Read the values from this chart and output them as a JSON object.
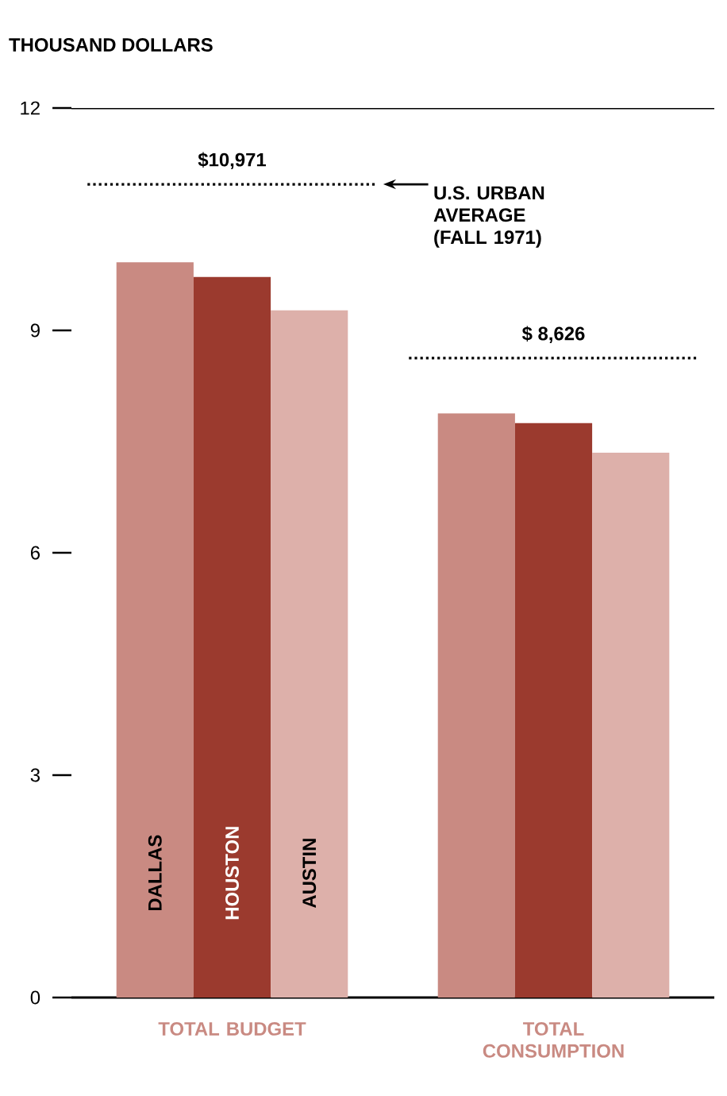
{
  "chart_data": {
    "type": "bar",
    "ylabel": "THOUSAND DOLLARS",
    "categories": [
      "TOTAL BUDGET",
      "TOTAL CONSUMPTION"
    ],
    "series": [
      {
        "name": "DALLAS",
        "color": "#c98a82",
        "values": [
          9.92,
          7.88
        ]
      },
      {
        "name": "HOUSTON",
        "color": "#9b3a2e",
        "values": [
          9.72,
          7.75
        ]
      },
      {
        "name": "AUSTIN",
        "color": "#ddb0aa",
        "values": [
          9.27,
          7.35
        ]
      }
    ],
    "ylim": [
      0,
      12
    ],
    "yticks": [
      0,
      3,
      6,
      9,
      12
    ],
    "ref_lines": [
      {
        "axis": "y",
        "value": 10.971,
        "label": "$10,971",
        "line_style": "dotted"
      },
      {
        "axis": "y",
        "value": 8.626,
        "label": "$ 8,626",
        "line_style": "dotted"
      }
    ],
    "annotations": [
      "U.S. URBAN AVERAGE (FALL 1971)"
    ],
    "grid": false,
    "legend": false
  }
}
